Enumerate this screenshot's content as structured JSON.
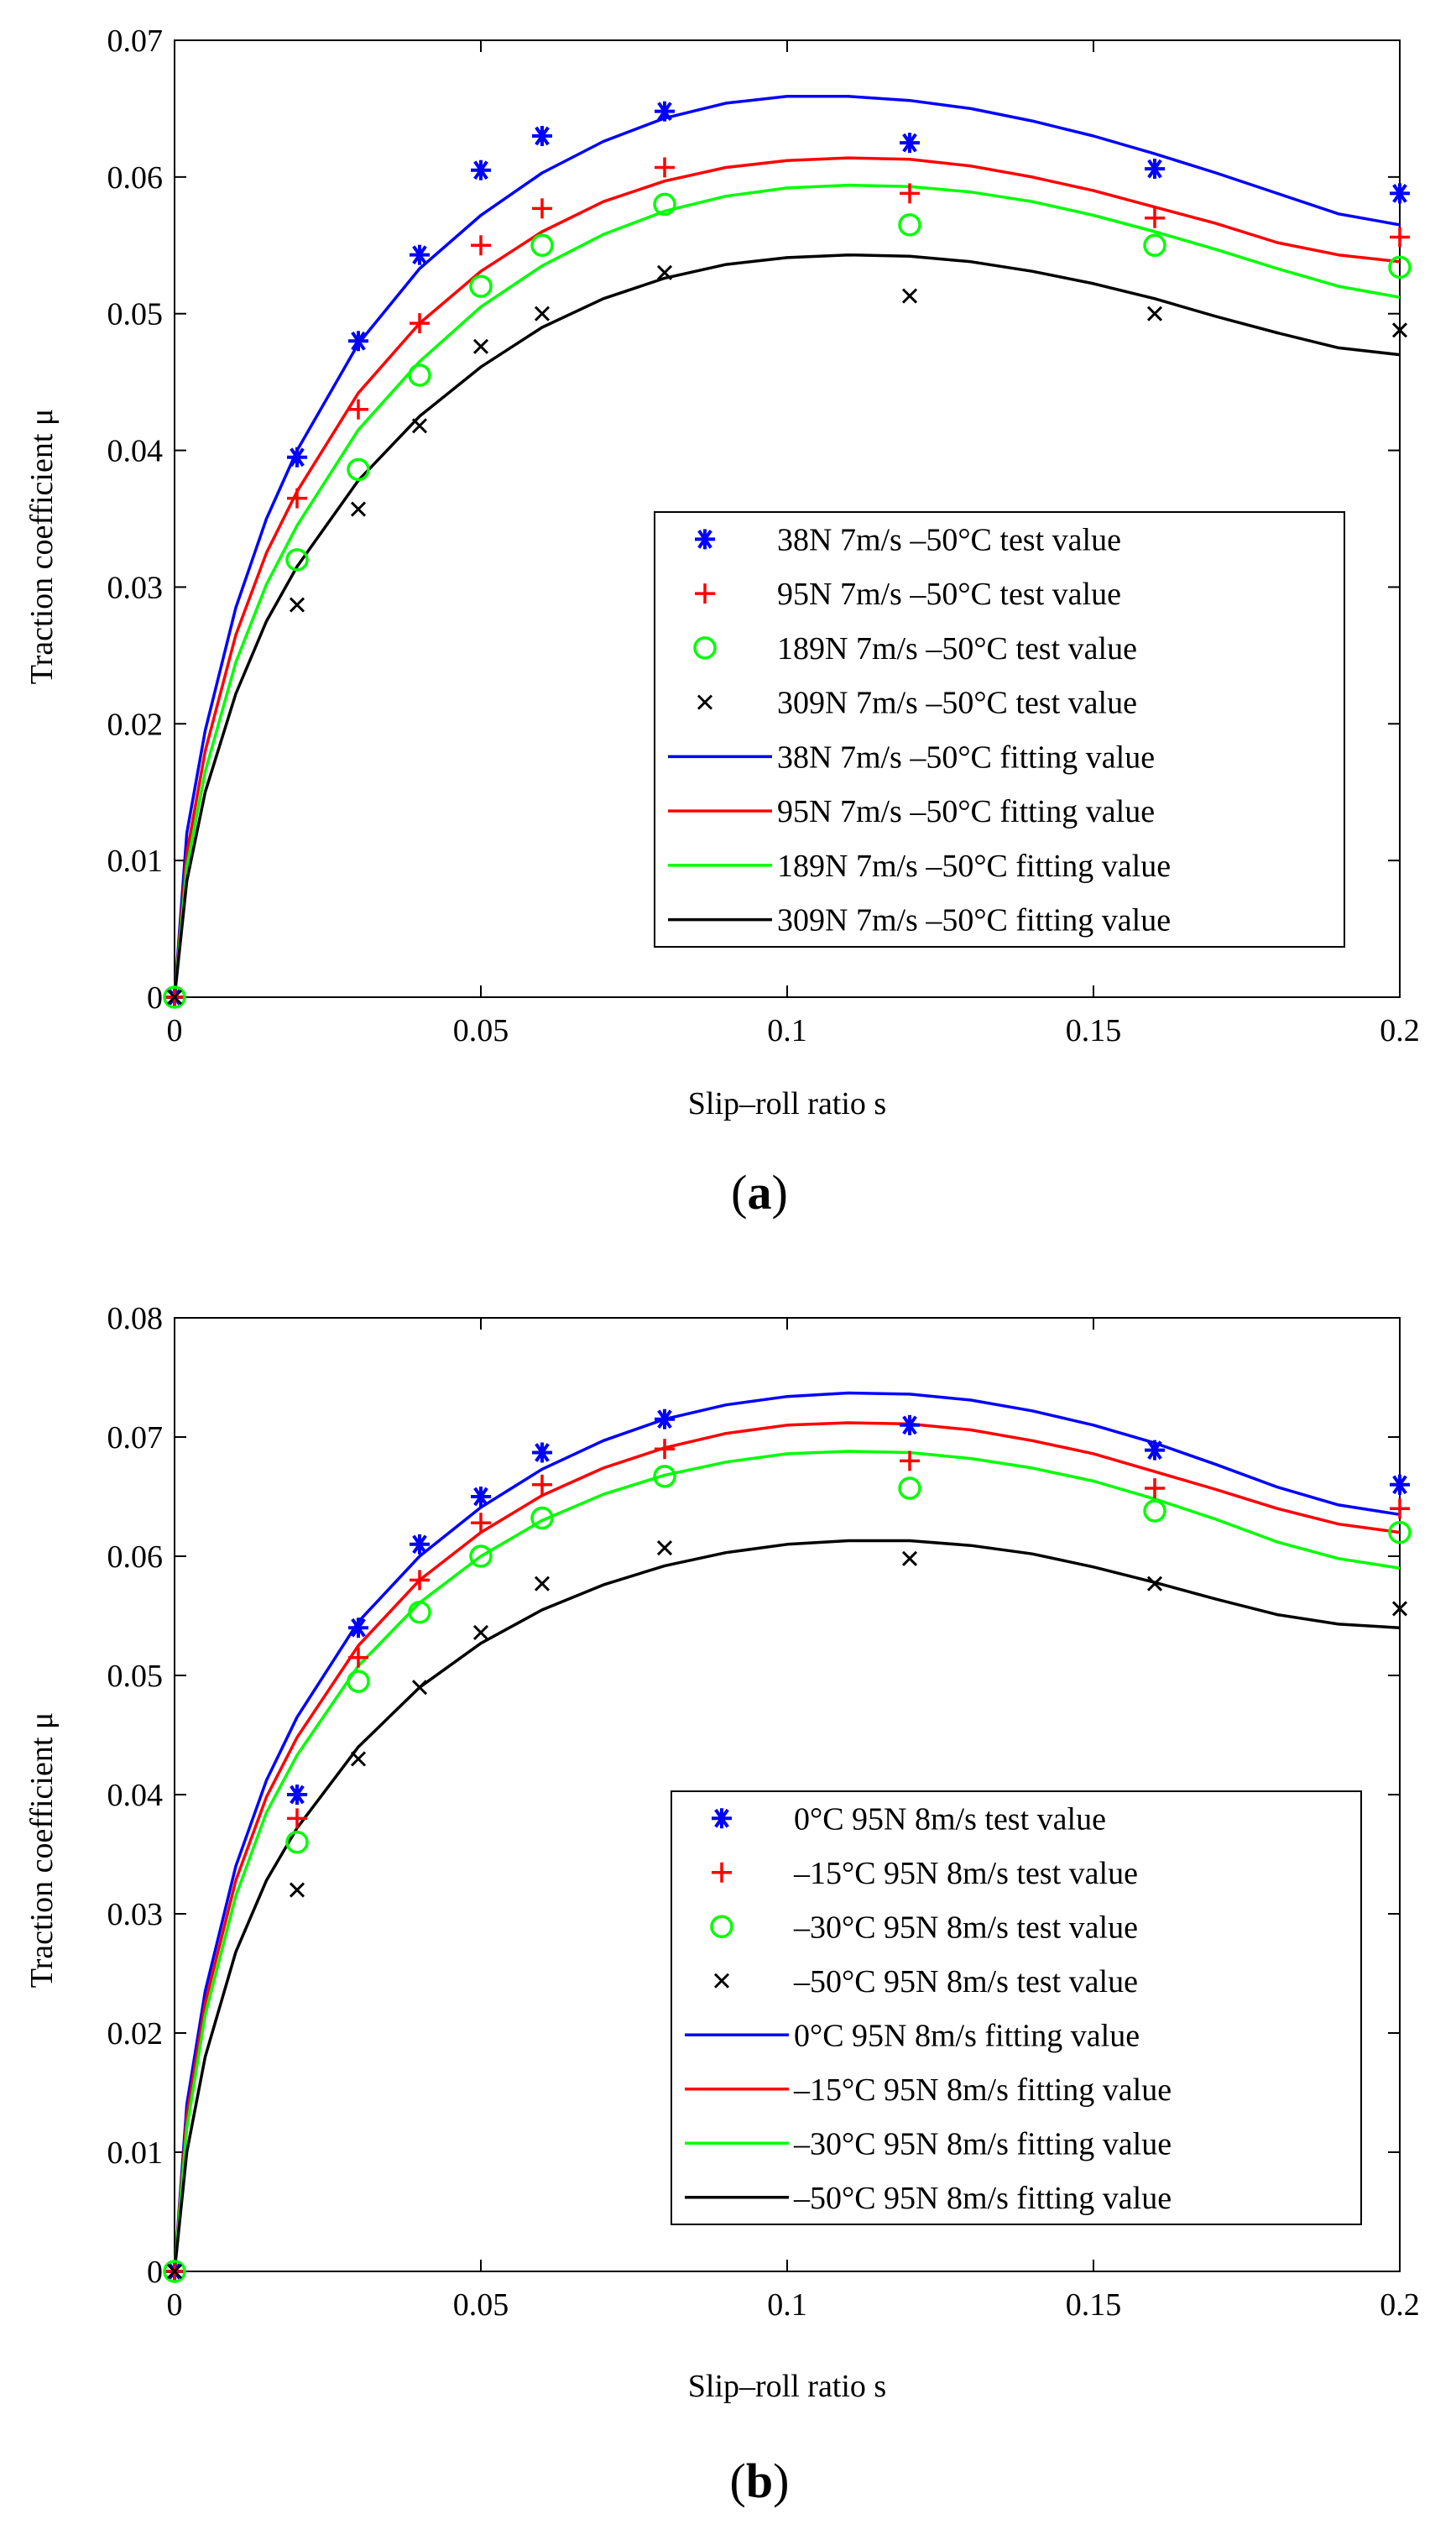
{
  "colors": {
    "blue": "#0000ff",
    "red": "#ff0000",
    "green": "#00ff00",
    "black": "#000000",
    "axis": "#000000"
  },
  "chart_data": [
    {
      "id": "a",
      "panel_label": "(a)",
      "panel_letter": "a",
      "type": "scatter",
      "title": "",
      "xlabel": "Slip–roll ratio   s",
      "ylabel": "Traction coefficient   μ",
      "xlim": [
        0,
        0.2
      ],
      "ylim": [
        0,
        0.07
      ],
      "xticks": [
        0,
        0.05,
        0.1,
        0.15,
        0.2
      ],
      "xtick_labels": [
        "0",
        "0.05",
        "0.1",
        "0.15",
        "0.2"
      ],
      "yticks": [
        0,
        0.01,
        0.02,
        0.03,
        0.04,
        0.05,
        0.06,
        0.07
      ],
      "ytick_labels": [
        "0",
        "0.01",
        "0.02",
        "0.03",
        "0.04",
        "0.05",
        "0.06",
        "0.07"
      ],
      "grid": false,
      "legend_position": "center-right",
      "x": [
        0,
        0.02,
        0.03,
        0.04,
        0.05,
        0.06,
        0.08,
        0.12,
        0.16,
        0.2
      ],
      "series": [
        {
          "name": "38N 7m/s –50°C test value",
          "kind": "marker",
          "marker": "asterisk",
          "color": "#0000ff",
          "values": [
            0,
            0.0395,
            0.048,
            0.0543,
            0.0605,
            0.063,
            0.0648,
            0.0625,
            0.0606,
            0.0588
          ]
        },
        {
          "name": "95N 7m/s –50°C test value",
          "kind": "marker",
          "marker": "plus",
          "color": "#ff0000",
          "values": [
            0,
            0.0365,
            0.043,
            0.0493,
            0.055,
            0.0577,
            0.0607,
            0.0588,
            0.057,
            0.0556
          ]
        },
        {
          "name": "189N 7m/s –50°C test value",
          "kind": "marker",
          "marker": "circle",
          "color": "#00ff00",
          "values": [
            0,
            0.032,
            0.0386,
            0.0455,
            0.052,
            0.055,
            0.058,
            0.0565,
            0.055,
            0.0534
          ]
        },
        {
          "name": "309N 7m/s –50°C test value",
          "kind": "marker",
          "marker": "cross",
          "color": "#000000",
          "values": [
            0,
            0.0287,
            0.0357,
            0.0418,
            0.0476,
            0.05,
            0.053,
            0.0513,
            0.05,
            0.0488
          ]
        },
        {
          "name": "38N 7m/s –50°C fitting value",
          "kind": "line",
          "color": "#0000ff",
          "x": [
            0,
            0.002,
            0.005,
            0.01,
            0.015,
            0.02,
            0.03,
            0.04,
            0.05,
            0.06,
            0.07,
            0.08,
            0.09,
            0.1,
            0.11,
            0.12,
            0.13,
            0.14,
            0.15,
            0.16,
            0.17,
            0.18,
            0.19,
            0.2
          ],
          "values": [
            0,
            0.012,
            0.0195,
            0.0285,
            0.035,
            0.04,
            0.0478,
            0.0533,
            0.0572,
            0.0603,
            0.0626,
            0.0643,
            0.0654,
            0.0659,
            0.0659,
            0.0656,
            0.065,
            0.0641,
            0.063,
            0.0617,
            0.0603,
            0.0588,
            0.0573,
            0.0565
          ]
        },
        {
          "name": "95N 7m/s –50°C fitting value",
          "kind": "line",
          "color": "#ff0000",
          "x": [
            0,
            0.002,
            0.005,
            0.01,
            0.015,
            0.02,
            0.03,
            0.04,
            0.05,
            0.06,
            0.07,
            0.08,
            0.09,
            0.1,
            0.11,
            0.12,
            0.13,
            0.14,
            0.15,
            0.16,
            0.17,
            0.18,
            0.19,
            0.2
          ],
          "values": [
            0,
            0.0105,
            0.018,
            0.0265,
            0.0325,
            0.037,
            0.0442,
            0.0493,
            0.0531,
            0.056,
            0.0582,
            0.0597,
            0.0607,
            0.0612,
            0.0614,
            0.0613,
            0.0608,
            0.06,
            0.059,
            0.0578,
            0.0566,
            0.0552,
            0.0543,
            0.0538
          ]
        },
        {
          "name": "189N 7m/s –50°C fitting value",
          "kind": "line",
          "color": "#00ff00",
          "x": [
            0,
            0.002,
            0.005,
            0.01,
            0.015,
            0.02,
            0.03,
            0.04,
            0.05,
            0.06,
            0.07,
            0.08,
            0.09,
            0.1,
            0.11,
            0.12,
            0.13,
            0.14,
            0.15,
            0.16,
            0.17,
            0.18,
            0.19,
            0.2
          ],
          "values": [
            0,
            0.0095,
            0.0165,
            0.0245,
            0.0302,
            0.0345,
            0.0415,
            0.0465,
            0.0505,
            0.0535,
            0.0558,
            0.0575,
            0.0586,
            0.0592,
            0.0594,
            0.0593,
            0.0589,
            0.0582,
            0.0572,
            0.056,
            0.0547,
            0.0533,
            0.052,
            0.0512
          ]
        },
        {
          "name": "309N 7m/s –50°C fitting value",
          "kind": "line",
          "color": "#000000",
          "x": [
            0,
            0.002,
            0.005,
            0.01,
            0.015,
            0.02,
            0.03,
            0.04,
            0.05,
            0.06,
            0.07,
            0.08,
            0.09,
            0.1,
            0.11,
            0.12,
            0.13,
            0.14,
            0.15,
            0.16,
            0.17,
            0.18,
            0.19,
            0.2
          ],
          "values": [
            0,
            0.0085,
            0.015,
            0.0222,
            0.0275,
            0.0315,
            0.0378,
            0.0425,
            0.0461,
            0.049,
            0.0511,
            0.0526,
            0.0536,
            0.0541,
            0.0543,
            0.0542,
            0.0538,
            0.0531,
            0.0522,
            0.0511,
            0.0498,
            0.0486,
            0.0475,
            0.047
          ]
        }
      ]
    },
    {
      "id": "b",
      "panel_label": "(b)",
      "panel_letter": "b",
      "type": "scatter",
      "title": "",
      "xlabel": "Slip–roll ratio   s",
      "ylabel": "Traction coefficient   μ",
      "xlim": [
        0,
        0.2
      ],
      "ylim": [
        0,
        0.08
      ],
      "xticks": [
        0,
        0.05,
        0.1,
        0.15,
        0.2
      ],
      "xtick_labels": [
        "0",
        "0.05",
        "0.1",
        "0.15",
        "0.2"
      ],
      "yticks": [
        0,
        0.01,
        0.02,
        0.03,
        0.04,
        0.05,
        0.06,
        0.07,
        0.08
      ],
      "ytick_labels": [
        "0",
        "0.01",
        "0.02",
        "0.03",
        "0.04",
        "0.05",
        "0.06",
        "0.07",
        "0.08"
      ],
      "grid": false,
      "legend_position": "lower-right",
      "x": [
        0,
        0.02,
        0.03,
        0.04,
        0.05,
        0.06,
        0.08,
        0.12,
        0.16,
        0.2
      ],
      "series": [
        {
          "name": "0°C 95N 8m/s test value",
          "kind": "marker",
          "marker": "asterisk",
          "color": "#0000ff",
          "values": [
            0,
            0.04,
            0.054,
            0.061,
            0.065,
            0.0687,
            0.0715,
            0.071,
            0.0689,
            0.066
          ]
        },
        {
          "name": "–15°C 95N 8m/s test value",
          "kind": "marker",
          "marker": "plus",
          "color": "#ff0000",
          "values": [
            0,
            0.038,
            0.0515,
            0.058,
            0.0628,
            0.066,
            0.069,
            0.068,
            0.0657,
            0.064
          ]
        },
        {
          "name": "–30°C 95N 8m/s test value",
          "kind": "marker",
          "marker": "circle",
          "color": "#00ff00",
          "values": [
            0,
            0.036,
            0.0495,
            0.0553,
            0.06,
            0.0632,
            0.0667,
            0.0657,
            0.0638,
            0.062
          ]
        },
        {
          "name": "–50°C 95N 8m/s test value",
          "kind": "marker",
          "marker": "cross",
          "color": "#000000",
          "values": [
            0,
            0.032,
            0.043,
            0.049,
            0.0536,
            0.0577,
            0.0607,
            0.0598,
            0.0577,
            0.0556
          ]
        },
        {
          "name": "0°C 95N 8m/s fitting value",
          "kind": "line",
          "color": "#0000ff",
          "x": [
            0,
            0.002,
            0.005,
            0.01,
            0.015,
            0.02,
            0.03,
            0.04,
            0.05,
            0.06,
            0.07,
            0.08,
            0.09,
            0.1,
            0.11,
            0.12,
            0.13,
            0.14,
            0.15,
            0.16,
            0.17,
            0.18,
            0.19,
            0.2
          ],
          "values": [
            0,
            0.014,
            0.0235,
            0.034,
            0.0412,
            0.0465,
            0.0545,
            0.06,
            0.0641,
            0.0673,
            0.0697,
            0.0715,
            0.0727,
            0.0734,
            0.0737,
            0.0736,
            0.0731,
            0.0722,
            0.071,
            0.0695,
            0.0677,
            0.0658,
            0.0643,
            0.0635
          ]
        },
        {
          "name": "–15°C 95N 8m/s fitting value",
          "kind": "line",
          "color": "#ff0000",
          "x": [
            0,
            0.002,
            0.005,
            0.01,
            0.015,
            0.02,
            0.03,
            0.04,
            0.05,
            0.06,
            0.07,
            0.08,
            0.09,
            0.1,
            0.11,
            0.12,
            0.13,
            0.14,
            0.15,
            0.16,
            0.17,
            0.18,
            0.19,
            0.2
          ],
          "values": [
            0,
            0.013,
            0.0225,
            0.0328,
            0.0398,
            0.0448,
            0.0525,
            0.058,
            0.062,
            0.0651,
            0.0674,
            0.0691,
            0.0703,
            0.071,
            0.0712,
            0.0711,
            0.0706,
            0.0697,
            0.0686,
            0.0671,
            0.0656,
            0.064,
            0.0627,
            0.062
          ]
        },
        {
          "name": "–30°C 95N 8m/s fitting value",
          "kind": "line",
          "color": "#00ff00",
          "x": [
            0,
            0.002,
            0.005,
            0.01,
            0.015,
            0.02,
            0.03,
            0.04,
            0.05,
            0.06,
            0.07,
            0.08,
            0.09,
            0.1,
            0.11,
            0.12,
            0.13,
            0.14,
            0.15,
            0.16,
            0.17,
            0.18,
            0.19,
            0.2
          ],
          "values": [
            0,
            0.012,
            0.0215,
            0.0315,
            0.0385,
            0.0433,
            0.0508,
            0.0561,
            0.06,
            0.063,
            0.0652,
            0.0668,
            0.0679,
            0.0686,
            0.0688,
            0.0687,
            0.0682,
            0.0674,
            0.0663,
            0.0648,
            0.0631,
            0.0612,
            0.0598,
            0.059
          ]
        },
        {
          "name": "–50°C 95N 8m/s fitting value",
          "kind": "line",
          "color": "#000000",
          "x": [
            0,
            0.002,
            0.005,
            0.01,
            0.015,
            0.02,
            0.03,
            0.04,
            0.05,
            0.06,
            0.07,
            0.08,
            0.09,
            0.1,
            0.11,
            0.12,
            0.13,
            0.14,
            0.15,
            0.16,
            0.17,
            0.18,
            0.19,
            0.2
          ],
          "values": [
            0,
            0.01,
            0.018,
            0.0268,
            0.0328,
            0.0372,
            0.044,
            0.049,
            0.0527,
            0.0555,
            0.0576,
            0.0592,
            0.0603,
            0.061,
            0.0613,
            0.0613,
            0.0609,
            0.0602,
            0.0591,
            0.0578,
            0.0564,
            0.0551,
            0.0543,
            0.054
          ]
        }
      ]
    }
  ]
}
